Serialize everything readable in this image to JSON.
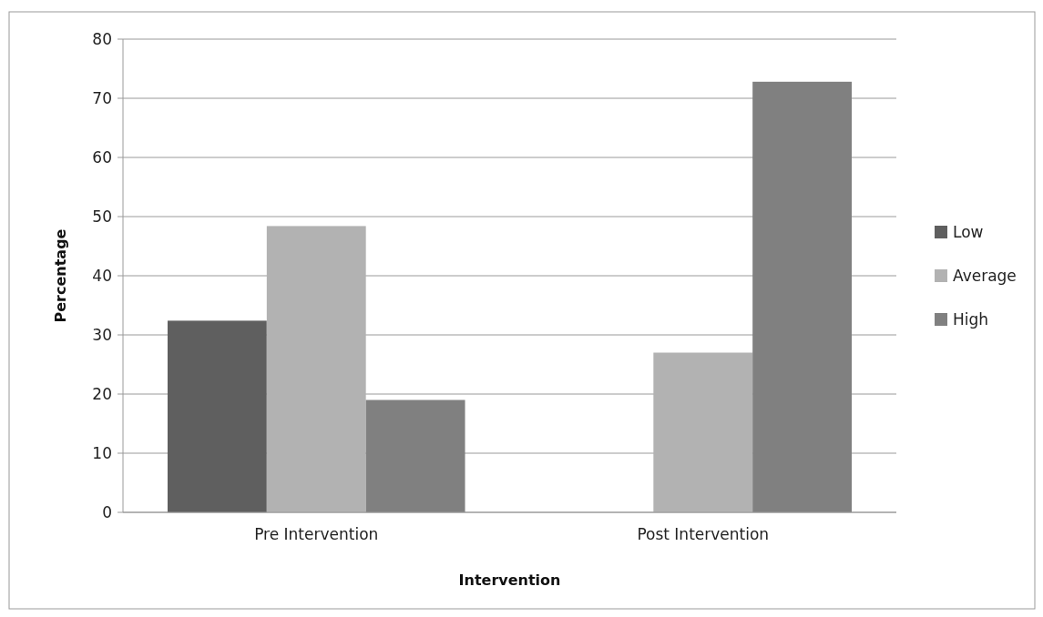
{
  "chart_data": {
    "type": "bar",
    "xlabel": "Intervention",
    "ylabel": "Percentage",
    "categories": [
      "Pre Intervention",
      "Post Intervention"
    ],
    "series": [
      {
        "name": "Low",
        "color": "#5f5f5f",
        "values": [
          32.4,
          0
        ]
      },
      {
        "name": "Average",
        "color": "#b2b2b2",
        "values": [
          48.4,
          27.0
        ]
      },
      {
        "name": "High",
        "color": "#808080",
        "values": [
          19.0,
          72.8
        ]
      }
    ],
    "ylim": [
      0,
      80
    ],
    "yticks": [
      0,
      10,
      20,
      30,
      40,
      50,
      60,
      70,
      80
    ],
    "grid": "y",
    "legend": "right"
  }
}
